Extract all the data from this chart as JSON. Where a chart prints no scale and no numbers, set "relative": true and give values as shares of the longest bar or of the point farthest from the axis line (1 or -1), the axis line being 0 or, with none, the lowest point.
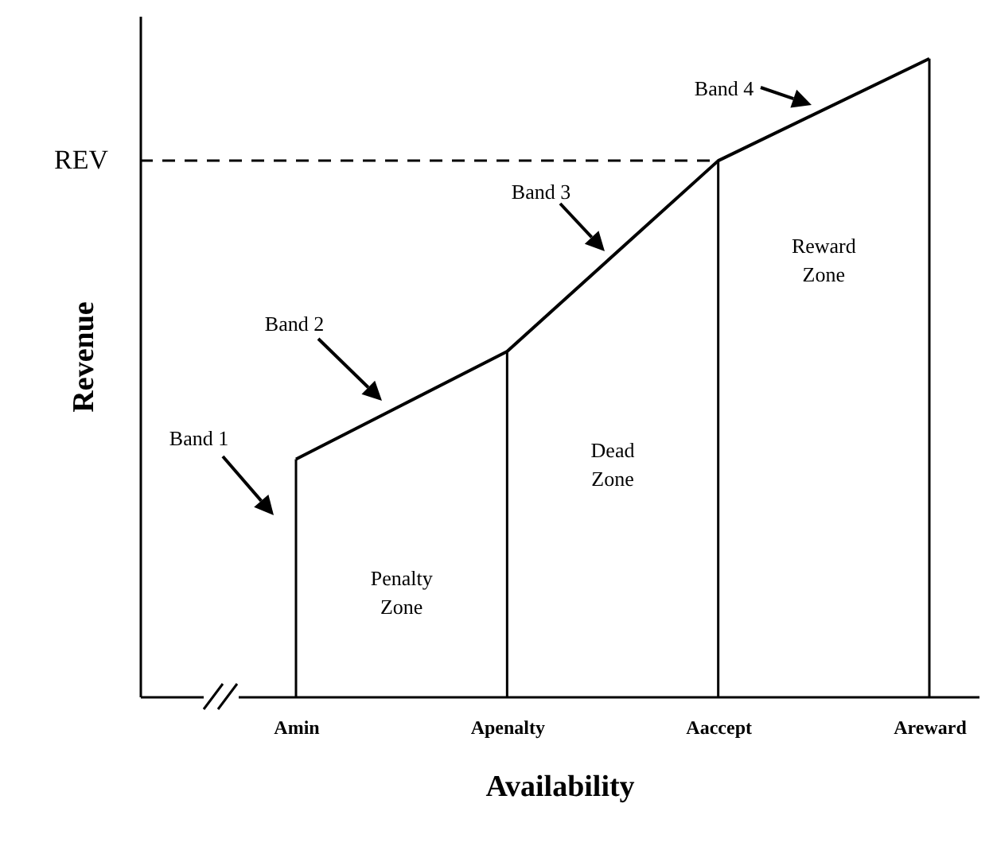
{
  "chart_data": {
    "type": "line",
    "relative": true,
    "xlabel": "Availability",
    "ylabel": "Revenue",
    "categories": [
      "Amin",
      "Apenalty",
      "Aaccept",
      "Areward"
    ],
    "series": [
      {
        "color": "#000000",
        "values": [
          0.372,
          0.541,
          0.84,
          1
        ]
      }
    ],
    "ref_lines": [
      {
        "axis": "y",
        "value": 0.84,
        "label": "REV",
        "line_style": "dashed",
        "color": "#000000"
      },
      {
        "axis": "x",
        "value": "Amin",
        "color": "#000000"
      },
      {
        "axis": "x",
        "value": "Apenalty",
        "color": "#000000"
      },
      {
        "axis": "x",
        "value": "Aaccept",
        "color": "#000000"
      },
      {
        "axis": "x",
        "value": "Areward",
        "color": "#000000"
      }
    ],
    "annotations": [
      "Band 1",
      "Band 2",
      "Band 3",
      "Band 4",
      "Penalty Zone",
      "Dead Zone",
      "Reward Zone"
    ],
    "marker": "none",
    "line_style": "solid"
  }
}
